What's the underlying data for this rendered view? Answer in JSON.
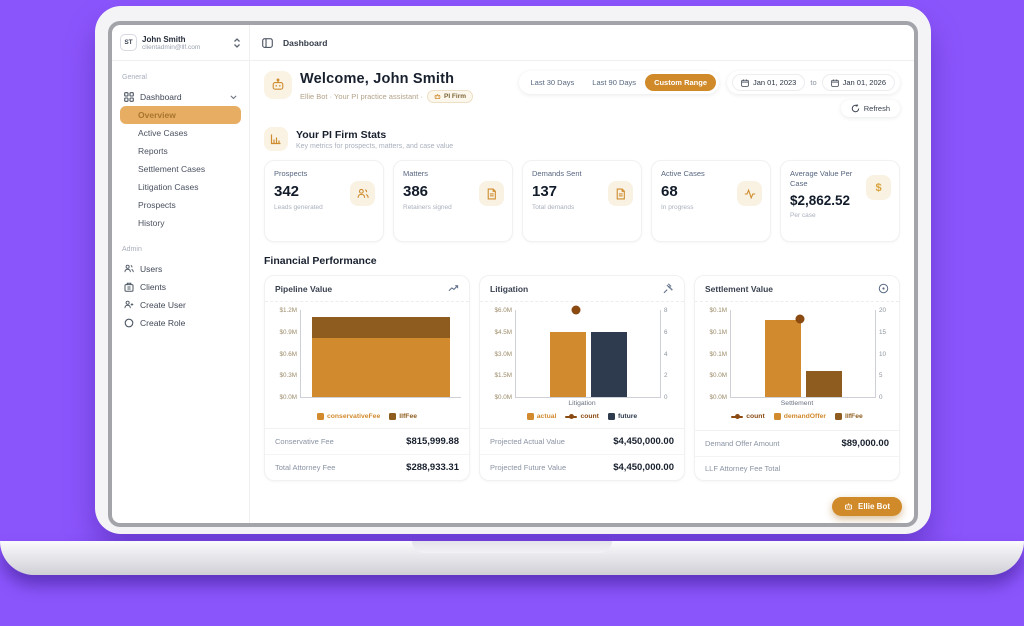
{
  "topbar": {
    "logo": "ST",
    "user_name": "John Smith",
    "user_email": "clientadmin@llf.com",
    "breadcrumb": "Dashboard"
  },
  "sidebar": {
    "general_label": "General",
    "dashboard_label": "Dashboard",
    "dashboard_children": [
      "Overview",
      "Active Cases",
      "Reports",
      "Settlement Cases",
      "Litigation Cases",
      "Prospects",
      "History"
    ],
    "active_child": "Overview",
    "admin_label": "Admin",
    "admin_items": [
      "Users",
      "Clients",
      "Create User",
      "Create Role"
    ]
  },
  "header": {
    "welcome": "Welcome, John Smith",
    "subtitle": "Ellie Bot · Your PI practice assistant ·",
    "badge": "PI Firm",
    "filters": {
      "last30": "Last 30 Days",
      "last90": "Last 90 Days",
      "custom": "Custom Range",
      "date_from": "Jan 01, 2023",
      "to_label": "to",
      "date_to": "Jan 01, 2026",
      "refresh": "Refresh"
    }
  },
  "stats": {
    "title": "Your PI Firm Stats",
    "subtitle": "Key metrics for prospects, matters, and case value",
    "cards": [
      {
        "title": "Prospects",
        "value": "342",
        "subtitle": "Leads generated",
        "icon": "users-icon"
      },
      {
        "title": "Matters",
        "value": "386",
        "subtitle": "Retainers signed",
        "icon": "file-icon"
      },
      {
        "title": "Demands Sent",
        "value": "137",
        "subtitle": "Total demands",
        "icon": "file-icon"
      },
      {
        "title": "Active Cases",
        "value": "68",
        "subtitle": "In progress",
        "icon": "activity-icon"
      },
      {
        "title": "Average Value Per Case",
        "value": "$2,862.52",
        "subtitle": "Per case",
        "icon": "dollar-icon"
      }
    ]
  },
  "financial": {
    "title": "Financial Performance",
    "cards": [
      {
        "title": "Pipeline Value",
        "icon": "trending-up-icon",
        "rows": [
          {
            "label": "Conservative Fee",
            "value": "$815,999.88"
          },
          {
            "label": "Total Attorney Fee",
            "value": "$288,933.31"
          }
        ]
      },
      {
        "title": "Litigation",
        "icon": "gavel-icon",
        "rows": [
          {
            "label": "Projected Actual Value",
            "value": "$4,450,000.00"
          },
          {
            "label": "Projected Future Value",
            "value": "$4,450,000.00"
          }
        ]
      },
      {
        "title": "Settlement Value",
        "icon": "target-icon",
        "rows": [
          {
            "label": "Demand Offer Amount",
            "value": "$89,000.00"
          },
          {
            "label": "LLF Attorney Fee Total",
            "value": ""
          }
        ]
      }
    ]
  },
  "ellie_bot_button": "Ellie Bot",
  "colors": {
    "background_purple": "#8b55fc",
    "accent_orange": "#d08a2a",
    "bar_orange": "#d28a2e",
    "bar_brown": "#8e5c1e",
    "bar_navy": "#2e3b4e",
    "count_dot": "#8a4a12",
    "active_pill": "#e7ae63"
  },
  "chart_data": [
    {
      "type": "bar",
      "stacked": true,
      "title": "Pipeline Value",
      "unit": "USD millions",
      "categories": [
        ""
      ],
      "series": [
        {
          "name": "conservativeFee",
          "values": [
            0.816
          ],
          "color": "#d28a2e"
        },
        {
          "name": "llfFee",
          "values": [
            0.289
          ],
          "color": "#8e5c1e"
        }
      ],
      "ylim": [
        0,
        1.2
      ],
      "yticks": [
        "$1.2M",
        "$0.9M",
        "$0.6M",
        "$0.3M",
        "$0.0M"
      ],
      "legend": [
        {
          "label": "conservativeFee",
          "color": "#d28a2e",
          "marker": "square"
        },
        {
          "label": "llfFee",
          "color": "#8e5c1e",
          "marker": "square"
        }
      ],
      "grid": false,
      "legend_position": "bottom"
    },
    {
      "type": "bar",
      "stacked": false,
      "title": "Litigation",
      "unit": "USD millions (left) / count (right)",
      "categories": [
        "Litigation"
      ],
      "series": [
        {
          "name": "actual",
          "values": [
            4.45
          ],
          "color": "#d28a2e",
          "axis": "left"
        },
        {
          "name": "future",
          "values": [
            4.45
          ],
          "color": "#2e3b4e",
          "axis": "left"
        },
        {
          "name": "count",
          "values": [
            8
          ],
          "color": "#8a4a12",
          "axis": "right",
          "marker": "point"
        }
      ],
      "ylim_left": [
        0,
        6
      ],
      "ylim_right": [
        0,
        8
      ],
      "yticks_left": [
        "$6.0M",
        "$4.5M",
        "$3.0M",
        "$1.5M",
        "$0.0M"
      ],
      "yticks_right": [
        "8",
        "6",
        "4",
        "2",
        "0"
      ],
      "point_x_pct": 42,
      "legend": [
        {
          "label": "actual",
          "color": "#d28a2e",
          "marker": "square"
        },
        {
          "label": "count",
          "color": "#8a4a12",
          "marker": "line-dot"
        },
        {
          "label": "future",
          "color": "#2e3b4e",
          "marker": "square"
        }
      ],
      "grid": false,
      "legend_position": "bottom"
    },
    {
      "type": "bar",
      "stacked": false,
      "title": "Settlement Value",
      "unit": "USD millions (left) / count (right)",
      "categories": [
        "Settlement"
      ],
      "series": [
        {
          "name": "demandOffer",
          "values": [
            0.089
          ],
          "color": "#d28a2e",
          "axis": "left"
        },
        {
          "name": "llfFee",
          "values": [
            0.03
          ],
          "color": "#8e5c1e",
          "axis": "left"
        },
        {
          "name": "count",
          "values": [
            18
          ],
          "color": "#8a4a12",
          "axis": "right",
          "marker": "point"
        }
      ],
      "ylim_left": [
        0,
        0.1
      ],
      "ylim_right": [
        0,
        20
      ],
      "yticks_left": [
        "$0.1M",
        "$0.1M",
        "$0.1M",
        "$0.0M",
        "$0.0M"
      ],
      "yticks_right": [
        "20",
        "15",
        "10",
        "5",
        "0"
      ],
      "point_x_pct": 48,
      "legend": [
        {
          "label": "count",
          "color": "#8a4a12",
          "marker": "line-dot"
        },
        {
          "label": "demandOffer",
          "color": "#d28a2e",
          "marker": "square"
        },
        {
          "label": "llfFee",
          "color": "#8e5c1e",
          "marker": "square"
        }
      ],
      "grid": false,
      "legend_position": "bottom"
    }
  ]
}
